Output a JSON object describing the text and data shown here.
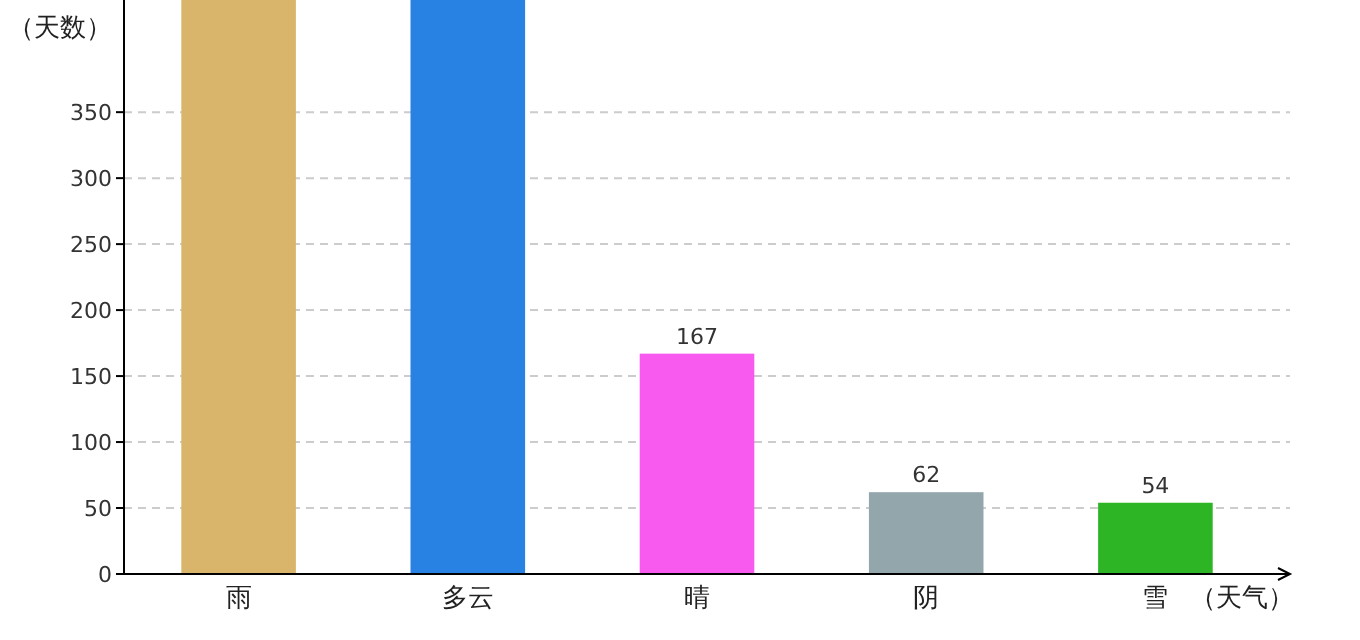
{
  "chart_data": {
    "type": "bar",
    "ylabel": "（天数）",
    "xlabel": "（天气）",
    "categories": [
      "雨",
      "多云",
      "晴",
      "阴",
      "雪"
    ],
    "values": [
      435,
      435,
      167,
      62,
      54
    ],
    "colors": [
      "#d9b56b",
      "#2882e3",
      "#f85af0",
      "#93a6ab",
      "#2db526"
    ],
    "value_labels": [
      null,
      null,
      "167",
      "62",
      "54"
    ],
    "ylim": [
      0,
      435
    ],
    "yticks": [
      0,
      50,
      100,
      150,
      200,
      250,
      300,
      350
    ],
    "grid": "y"
  }
}
